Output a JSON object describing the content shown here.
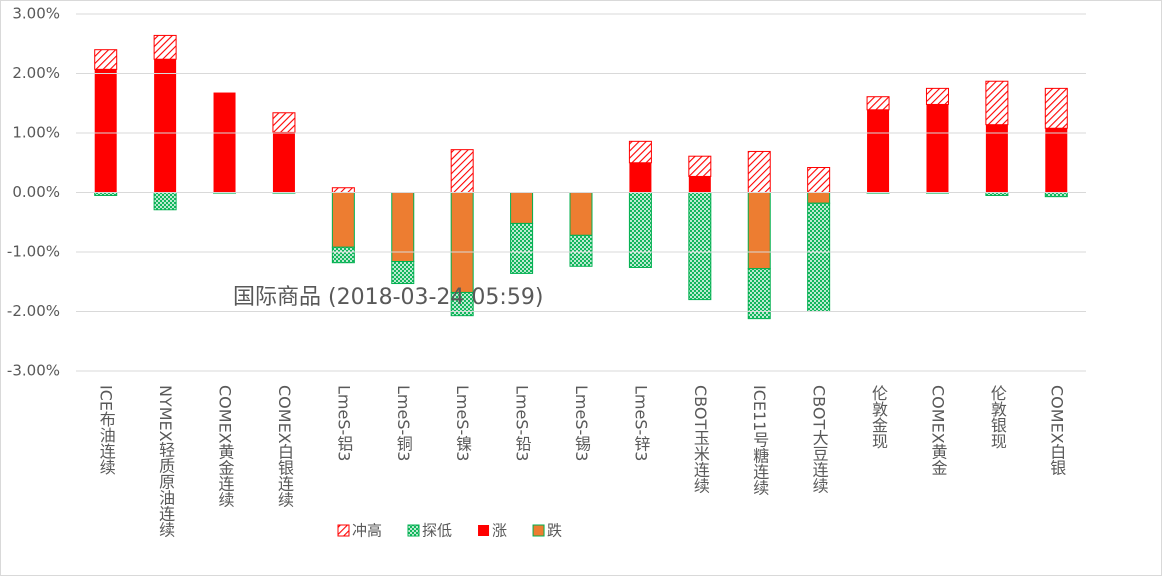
{
  "chart_data": {
    "type": "bar",
    "annotation": "国际商品 (2018-03-24 05:59)",
    "categories": [
      "ICE布油连续",
      "NYMEX轻质原油连续",
      "COMEX黄金连续",
      "COMEX白银连续",
      "LmeS-铝3",
      "LmeS-铜3",
      "LmeS-镍3",
      "LmeS-铅3",
      "LmeS-锡3",
      "LmeS-锌3",
      "CBOT玉米连续",
      "ICE11号糖连续",
      "CBOT大豆连续",
      "伦敦金现",
      "COMEX黄金",
      "伦敦银现",
      "COMEX白银"
    ],
    "series": [
      {
        "name": "冲高",
        "color": "#ff0000",
        "values": [
          0.33,
          0.4,
          0,
          0.33,
          0.08,
          0,
          0.72,
          0,
          0,
          0.36,
          0.34,
          0.69,
          0.42,
          0.22,
          0.27,
          0.73,
          0.67
        ]
      },
      {
        "name": "探低",
        "color": "#00b050",
        "values": [
          -0.05,
          -0.29,
          -0.01,
          -0.01,
          -0.26,
          -0.37,
          -0.39,
          -0.84,
          -0.52,
          -1.26,
          -1.8,
          -0.84,
          -1.82,
          -0.01,
          -0.01,
          -0.05,
          -0.07
        ]
      },
      {
        "name": "涨",
        "color": "#ff0000",
        "values": [
          2.07,
          2.24,
          1.68,
          1.01,
          0,
          0,
          0,
          0,
          0,
          0.5,
          0.27,
          0,
          0,
          1.39,
          1.48,
          1.14,
          1.08
        ]
      },
      {
        "name": "跌",
        "color": "#ed7d31",
        "values": [
          0,
          0,
          0,
          0,
          -0.92,
          -1.16,
          -1.68,
          -0.52,
          -0.72,
          0,
          0,
          -1.28,
          -0.18,
          0,
          0,
          0,
          0
        ]
      }
    ],
    "ylim": [
      -3,
      3
    ],
    "yticks": [
      {
        "value": -3,
        "label": "-3.00%"
      },
      {
        "value": -2,
        "label": "-2.00%"
      },
      {
        "value": -1,
        "label": "-1.00%"
      },
      {
        "value": 0,
        "label": "0.00%"
      },
      {
        "value": 1,
        "label": "1.00%"
      },
      {
        "value": 2,
        "label": "2.00%"
      },
      {
        "value": 3,
        "label": "3.00%"
      }
    ],
    "grid": true
  }
}
